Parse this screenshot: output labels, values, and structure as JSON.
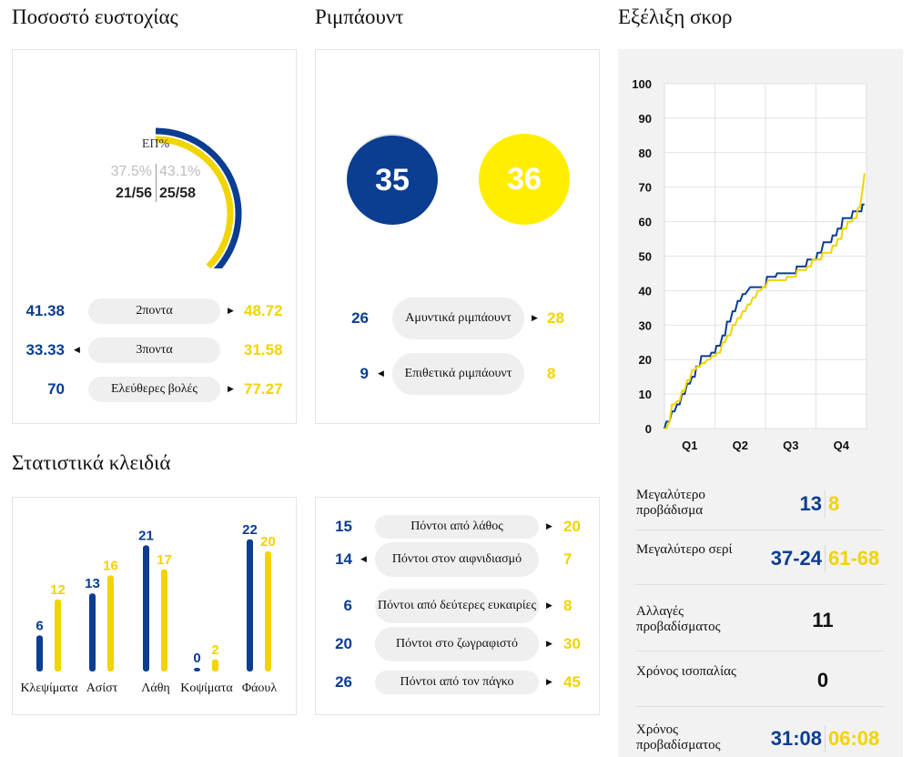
{
  "sections": {
    "shooting_title": "Ποσοστό ευστοχίας",
    "rebounds_title": "Ριμπάουντ",
    "score_title": "Εξέλιξη σκορ",
    "key_stats_title": "Στατιστικά κλειδιά"
  },
  "colors": {
    "home": "#0b3d91",
    "away": "#f2d400",
    "pill": "#efefef"
  },
  "shooting": {
    "fg_label": "ΕΠ%",
    "home_pct": "37.5%",
    "home_made": "21/56",
    "home_fraction": 0.375,
    "away_pct": "43.1%",
    "away_made": "25/58",
    "away_fraction": 0.431,
    "rows": [
      {
        "label": "2ποντα",
        "home": "41.38",
        "away": "48.72",
        "leader": "away"
      },
      {
        "label": "3ποντα",
        "home": "33.33",
        "away": "31.58",
        "leader": "home"
      },
      {
        "label": "Ελεύθερες βολές",
        "home": "70",
        "away": "77.27",
        "leader": "away"
      }
    ]
  },
  "rebounds": {
    "home_total": "35",
    "away_total": "36",
    "rows": [
      {
        "label": "Αμυντικά ριμπάουντ",
        "home": "26",
        "away": "28",
        "leader": "away"
      },
      {
        "label": "Επιθετικά ριμπάουντ",
        "home": "9",
        "away": "8",
        "leader": "home"
      }
    ]
  },
  "other_stats": {
    "rows": [
      {
        "label": "Πόντοι από λάθος",
        "home": "15",
        "away": "20",
        "leader": "away"
      },
      {
        "label": "Πόντοι στον αιφνιδιασμό",
        "home": "14",
        "away": "7",
        "leader": "home"
      },
      {
        "label": "Πόντοι από δεύτερες ευκαιρίες",
        "home": "6",
        "away": "8",
        "leader": "away"
      },
      {
        "label": "Πόντοι στο ζωγραφιστό",
        "home": "20",
        "away": "30",
        "leader": "away"
      },
      {
        "label": "Πόντοι από τον πάγκο",
        "home": "26",
        "away": "45",
        "leader": "away"
      }
    ]
  },
  "score_summary": {
    "rows": [
      {
        "label": "Μεγαλύτερο προβάδισμα",
        "home": "13",
        "away": "8"
      },
      {
        "label": "Μεγαλύτερο σερί",
        "home": "37-24",
        "away": "61-68"
      },
      {
        "label": "Αλλαγές προβαδίσματος",
        "value": "11"
      },
      {
        "label": "Χρόνος ισοπαλίας",
        "value": "0"
      },
      {
        "label": "Χρόνος προβαδίσματος",
        "home": "31:08",
        "away": "06:08"
      }
    ]
  },
  "chart_data": [
    {
      "type": "line",
      "ylim": [
        0,
        100
      ],
      "yticks": [
        "0",
        "10",
        "20",
        "30",
        "40",
        "50",
        "60",
        "70",
        "80",
        "90",
        "100"
      ],
      "xticks": [
        "Q1",
        "Q2",
        "Q3",
        "Q4"
      ],
      "xlim": [
        0,
        40
      ],
      "grid": true,
      "series": [
        {
          "color": "#0b3d91",
          "points": [
            [
              0,
              0
            ],
            [
              0.4,
              2
            ],
            [
              1,
              2
            ],
            [
              1.5,
              5
            ],
            [
              2,
              5
            ],
            [
              2.5,
              7
            ],
            [
              3,
              7
            ],
            [
              3.5,
              10
            ],
            [
              4,
              10
            ],
            [
              4.5,
              13
            ],
            [
              5,
              13
            ],
            [
              5.5,
              15
            ],
            [
              6,
              15
            ],
            [
              6.3,
              18
            ],
            [
              7,
              18
            ],
            [
              7.3,
              21
            ],
            [
              8,
              21
            ],
            [
              9,
              21
            ],
            [
              9.3,
              22
            ],
            [
              10,
              22
            ],
            [
              10.3,
              24
            ],
            [
              11,
              24
            ],
            [
              11.5,
              27
            ],
            [
              12,
              27
            ],
            [
              12.4,
              31
            ],
            [
              13,
              31
            ],
            [
              13.5,
              34
            ],
            [
              14,
              34
            ],
            [
              14.5,
              37
            ],
            [
              15,
              37
            ],
            [
              15.5,
              39
            ],
            [
              16,
              39
            ],
            [
              17,
              41
            ],
            [
              18,
              41
            ],
            [
              19,
              41
            ],
            [
              20,
              41
            ],
            [
              20.3,
              44
            ],
            [
              21,
              44
            ],
            [
              22,
              44
            ],
            [
              22.3,
              45
            ],
            [
              23,
              45
            ],
            [
              26,
              45
            ],
            [
              26.2,
              47
            ],
            [
              27,
              47
            ],
            [
              28,
              47
            ],
            [
              28.3,
              49
            ],
            [
              29,
              49
            ],
            [
              30,
              49
            ],
            [
              30.3,
              51
            ],
            [
              31,
              51
            ],
            [
              31.5,
              54
            ],
            [
              32,
              54
            ],
            [
              33,
              54
            ],
            [
              33.3,
              56
            ],
            [
              34,
              56
            ],
            [
              34.3,
              58
            ],
            [
              35,
              58
            ],
            [
              35.3,
              61
            ],
            [
              36,
              61
            ],
            [
              37,
              61
            ],
            [
              37.3,
              63
            ],
            [
              38,
              63
            ],
            [
              38.5,
              63
            ],
            [
              39,
              63
            ],
            [
              39.2,
              65
            ],
            [
              39.6,
              65
            ]
          ]
        },
        {
          "color": "#f2d400",
          "points": [
            [
              0,
              0
            ],
            [
              0.4,
              0
            ],
            [
              1,
              2
            ],
            [
              1.5,
              7
            ],
            [
              2,
              7
            ],
            [
              2.5,
              8
            ],
            [
              3,
              8
            ],
            [
              3.5,
              11
            ],
            [
              4,
              11
            ],
            [
              4.5,
              14
            ],
            [
              5,
              14
            ],
            [
              5.5,
              17
            ],
            [
              6,
              17
            ],
            [
              6.5,
              18
            ],
            [
              7,
              18
            ],
            [
              7.5,
              19
            ],
            [
              8,
              19
            ],
            [
              8.5,
              20
            ],
            [
              9,
              20
            ],
            [
              9.5,
              21
            ],
            [
              10,
              21
            ],
            [
              10.5,
              22
            ],
            [
              11,
              22
            ],
            [
              11.5,
              25
            ],
            [
              12,
              25
            ],
            [
              12.5,
              27
            ],
            [
              13,
              27
            ],
            [
              13.5,
              30
            ],
            [
              14,
              30
            ],
            [
              14.5,
              32
            ],
            [
              15,
              32
            ],
            [
              15.5,
              34
            ],
            [
              16,
              34
            ],
            [
              16.5,
              36
            ],
            [
              17,
              36
            ],
            [
              17.5,
              38
            ],
            [
              18,
              38
            ],
            [
              18.5,
              40
            ],
            [
              19,
              40
            ],
            [
              19.5,
              41
            ],
            [
              20,
              41
            ],
            [
              20.5,
              43
            ],
            [
              21,
              43
            ],
            [
              24,
              43
            ],
            [
              24.3,
              44
            ],
            [
              25,
              44
            ],
            [
              26,
              44
            ],
            [
              26.3,
              46
            ],
            [
              27,
              46
            ],
            [
              28,
              46
            ],
            [
              28.3,
              47
            ],
            [
              29,
              47
            ],
            [
              29.3,
              49
            ],
            [
              30,
              49
            ],
            [
              31,
              49
            ],
            [
              31.3,
              51
            ],
            [
              32,
              51
            ],
            [
              32.5,
              51
            ],
            [
              33,
              51
            ],
            [
              33.3,
              53
            ],
            [
              34,
              53
            ],
            [
              34.3,
              55
            ],
            [
              35,
              55
            ],
            [
              35.3,
              58
            ],
            [
              36,
              58
            ],
            [
              36.3,
              60
            ],
            [
              37,
              60
            ],
            [
              37.5,
              61
            ],
            [
              38,
              61
            ],
            [
              38.3,
              64
            ],
            [
              38.7,
              64
            ],
            [
              39,
              67
            ],
            [
              39.3,
              70
            ],
            [
              39.6,
              74
            ]
          ]
        }
      ]
    },
    {
      "type": "bar",
      "categories": [
        "Κλεψίματα",
        "Ασίστ",
        "Λάθη",
        "Κοψίματα",
        "Φάουλ"
      ],
      "ylim": [
        0,
        25
      ],
      "series": [
        {
          "color": "#0b3d91",
          "values": [
            6,
            13,
            21,
            0,
            22
          ]
        },
        {
          "color": "#f2d400",
          "values": [
            12,
            16,
            17,
            2,
            20
          ]
        }
      ]
    }
  ]
}
